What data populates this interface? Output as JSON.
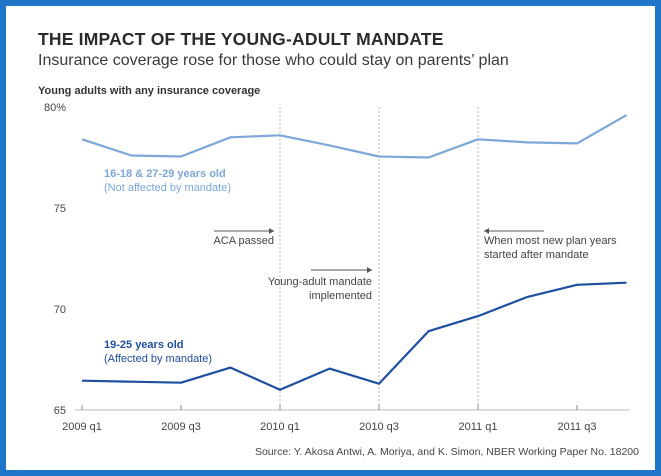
{
  "title": "THE IMPACT OF THE YOUNG-ADULT MANDATE",
  "subtitle": "Insurance coverage rose for those who could stay on parents’ plan",
  "source": "Source: Y. Akosa Antwi, A. Moriya, and K. Simon, NBER Working Paper No. 18200",
  "colors": {
    "frame": "#1f76c8",
    "unaffected": "#7ba7d9",
    "affected": "#1e4fa0"
  },
  "chart_data": {
    "type": "line",
    "ylabel": "Young adults with any insurance coverage",
    "ylim": [
      65,
      80
    ],
    "yticks": [
      65,
      70,
      75,
      80
    ],
    "ytick_labels": [
      "65",
      "70",
      "75",
      "80%"
    ],
    "x": [
      "2009 q1",
      "2009 q2",
      "2009 q3",
      "2009 q4",
      "2010 q1",
      "2010 q2",
      "2010 q3",
      "2010 q4",
      "2011 q1",
      "2011 q2",
      "2011 q3",
      "2011 q4"
    ],
    "xtick_labels": [
      "2009 q1",
      "2009 q3",
      "2010 q1",
      "2010 q3",
      "2011 q1",
      "2011 q3"
    ],
    "series": [
      {
        "name": "16-18 & 27-29 years old",
        "note": "(Not affected by mandate)",
        "values": [
          78.4,
          77.6,
          77.55,
          78.5,
          78.6,
          78.1,
          77.55,
          77.5,
          78.4,
          78.25,
          78.2,
          79.6
        ]
      },
      {
        "name": "19-25 years old",
        "note": "(Affected by mandate)",
        "values": [
          66.45,
          66.4,
          66.35,
          67.1,
          66.0,
          67.05,
          66.3,
          68.9,
          69.65,
          70.6,
          71.2,
          71.3
        ]
      }
    ],
    "annotations": [
      {
        "lines": [
          "ACA passed"
        ],
        "at": "2010 q1",
        "arrow": "right"
      },
      {
        "lines": [
          "Young-adult mandate",
          "implemented"
        ],
        "at": "2010 q3",
        "arrow": "right"
      },
      {
        "lines": [
          "When most new plan years",
          "started after mandate"
        ],
        "at": "2011 q1",
        "arrow": "left"
      }
    ],
    "vlines": [
      "2010 q1",
      "2010 q3",
      "2011 q1"
    ]
  }
}
